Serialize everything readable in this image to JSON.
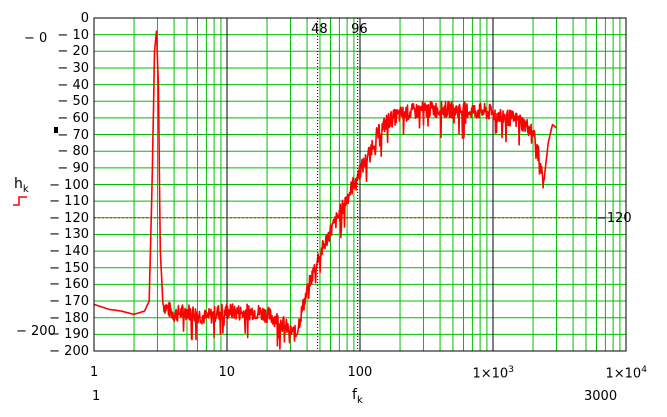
{
  "colors": {
    "background": "#ffffff",
    "grid_minor": "#00c000",
    "grid_major": "#000000",
    "trace": "#ff0000",
    "threshold_line": "#ff0000",
    "marker_line": "#000000"
  },
  "chart_data": {
    "type": "line",
    "x_scale": "log",
    "xlim": [
      1,
      10000
    ],
    "ylim": [
      -200,
      0
    ],
    "x_ticks": [
      {
        "value": 1,
        "label": "1"
      },
      {
        "value": 10,
        "label": "10"
      },
      {
        "value": 100,
        "label": "100"
      },
      {
        "value": 1000,
        "label": "1×10",
        "exp": "3"
      },
      {
        "value": 10000,
        "label": "1×10",
        "exp": "4"
      }
    ],
    "y_ticks": [
      0,
      -10,
      -20,
      -30,
      -40,
      -50,
      -60,
      -70,
      -80,
      -90,
      -100,
      -110,
      -120,
      -130,
      -140,
      -150,
      -160,
      -170,
      -180,
      -190,
      -200
    ],
    "y_tick_labels": [
      "0",
      "− 10",
      "− 20",
      "− 30",
      "− 40",
      "− 50",
      "− 60",
      "− 70",
      "− 80",
      "− 90",
      "− 100",
      "− 110",
      "− 120",
      "− 130",
      "− 140",
      "− 150",
      "− 160",
      "− 170",
      "− 180",
      "− 190",
      "− 200"
    ],
    "xlabel": "f",
    "xlabel_sub": "k",
    "ylabel": "h",
    "ylabel_sub": "k",
    "x_range_labels": {
      "min": "1",
      "max": "3000"
    },
    "y_range_labels": {
      "max": "− 0",
      "min": "− 200"
    },
    "markers": [
      {
        "x": 48,
        "label": "48"
      },
      {
        "x": 96,
        "label": "96"
      }
    ],
    "threshold": {
      "y": -120,
      "label": "−120"
    },
    "series": [
      {
        "values": [
          [
            1,
            -172
          ],
          [
            1.3,
            -175
          ],
          [
            1.6,
            -176
          ],
          [
            2,
            -178
          ],
          [
            2.4,
            -176
          ],
          [
            2.6,
            -170
          ],
          [
            2.75,
            -90
          ],
          [
            2.85,
            -20
          ],
          [
            2.95,
            -8
          ],
          [
            3.05,
            -40
          ],
          [
            3.15,
            -140
          ],
          [
            3.3,
            -172
          ],
          [
            4,
            -178
          ],
          [
            5,
            -176
          ],
          [
            6,
            -178
          ],
          [
            7,
            -180
          ],
          [
            8,
            -178
          ],
          [
            9,
            -176
          ],
          [
            10,
            -176
          ],
          [
            13,
            -177
          ],
          [
            16,
            -176
          ],
          [
            20,
            -178
          ],
          [
            25,
            -182
          ],
          [
            30,
            -188
          ],
          [
            33,
            -190
          ],
          [
            36,
            -178
          ],
          [
            40,
            -164
          ],
          [
            48,
            -145
          ],
          [
            60,
            -128
          ],
          [
            70,
            -118
          ],
          [
            80,
            -108
          ],
          [
            96,
            -94
          ],
          [
            110,
            -86
          ],
          [
            130,
            -72
          ],
          [
            160,
            -62
          ],
          [
            200,
            -58
          ],
          [
            300,
            -55
          ],
          [
            500,
            -55
          ],
          [
            800,
            -56
          ],
          [
            1000,
            -57
          ],
          [
            1200,
            -59
          ],
          [
            1600,
            -62
          ],
          [
            2000,
            -68
          ],
          [
            2200,
            -82
          ],
          [
            2400,
            -100
          ],
          [
            2600,
            -75
          ],
          [
            2800,
            -64
          ],
          [
            3000,
            -66
          ]
        ]
      }
    ]
  }
}
